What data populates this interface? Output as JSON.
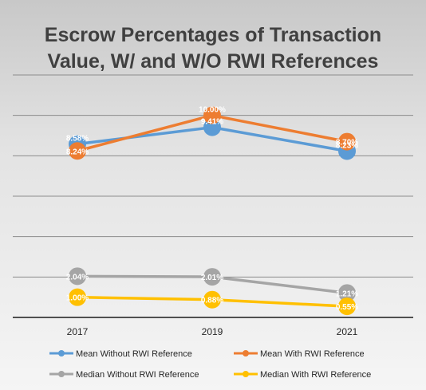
{
  "chart_data": {
    "type": "line",
    "title": "Escrow Percentages of Transaction Value, W/ and W/O RWI References",
    "title_lines": [
      "Escrow Percentages of Transaction",
      "Value, W/ and W/O RWI References"
    ],
    "categories": [
      "2017",
      "2019",
      "2021"
    ],
    "ylim": [
      0,
      12
    ],
    "grid": true,
    "y_tick_labels_shown": false,
    "legend_position": "bottom",
    "series": [
      {
        "name": "Mean Without RWI Reference",
        "color": "#5b9bd5",
        "values": [
          8.58,
          9.41,
          8.23
        ],
        "labels": [
          "8.58%",
          "9.41%",
          "8.23%"
        ]
      },
      {
        "name": "Mean With RWI Reference",
        "color": "#ed7d31",
        "values": [
          8.24,
          10.0,
          8.7
        ],
        "labels": [
          "8.24%",
          "10.00%",
          "8.70%"
        ]
      },
      {
        "name": "Median Without RWI Reference",
        "color": "#a5a5a5",
        "values": [
          2.04,
          2.01,
          1.21
        ],
        "labels": [
          "2.04%",
          "2.01%",
          "1.21%"
        ]
      },
      {
        "name": "Median With RWI Reference",
        "color": "#ffc000",
        "values": [
          1.0,
          0.88,
          0.55
        ],
        "labels": [
          "1.00%",
          "0.88%",
          "0.55%"
        ]
      }
    ]
  }
}
